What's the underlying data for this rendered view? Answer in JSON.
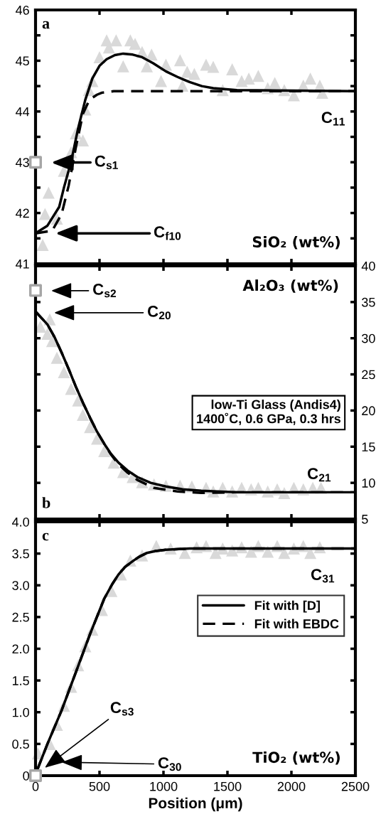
{
  "chart_data": [
    {
      "type": "scatter",
      "title": "SiO₂ (wt%)",
      "xlim": [
        0,
        2500
      ],
      "xticks": [
        0,
        500,
        1000,
        1500,
        2000,
        2500
      ],
      "ylim": [
        41,
        46
      ],
      "yticks": [
        41,
        {
          "value": 41.5,
          "label": null
        },
        42,
        {
          "value": 42.5,
          "label": null
        },
        43,
        {
          "value": 43.5,
          "label": null
        },
        44,
        {
          "value": 44.5,
          "label": null
        },
        45,
        {
          "value": 45.5,
          "label": null
        },
        46
      ],
      "tick_labels": "y",
      "grid": false,
      "legend": false,
      "annotations": [
        "a",
        "C$_{s1}$",
        "C$_{f10}$",
        "C$_{11}$"
      ],
      "series": [
        {
          "marker": "triangle",
          "color": "#d9d9d9",
          "x": [
            56,
            74,
            102,
            167,
            222,
            278,
            315,
            370,
            389,
            417,
            444,
            500,
            556,
            630,
            574,
            685,
            741,
            778,
            833,
            870,
            907,
            981,
            1019,
            1130,
            1185,
            1148,
            1241,
            1333,
            1389,
            1463,
            1537,
            1611,
            1667,
            1741,
            1815,
            1870,
            1944,
            2019,
            2093,
            2148,
            2222,
            2241
          ],
          "values": [
            41.37,
            41.98,
            42.4,
            41.89,
            42.83,
            43.2,
            43.57,
            43.43,
            44.04,
            44.42,
            44.6,
            45.07,
            45.4,
            45.4,
            45.26,
            44.89,
            45.4,
            45.33,
            45.17,
            44.89,
            45.12,
            44.6,
            44.92,
            45.01,
            44.78,
            44.51,
            44.74,
            44.92,
            44.88,
            44.42,
            44.83,
            44.6,
            44.65,
            44.7,
            44.46,
            44.56,
            44.42,
            44.32,
            44.51,
            44.65,
            44.51,
            44.37
          ]
        },
        {
          "type": "line",
          "line_style": "solid",
          "color": "#000000",
          "x": [
            0,
            93,
            185,
            222,
            278,
            333,
            389,
            444,
            500,
            556,
            620,
            685,
            760,
            833,
            920,
            1019,
            1110,
            1204,
            1300,
            1389,
            1574,
            2500
          ],
          "values": [
            41.6,
            41.75,
            42.12,
            42.5,
            43.01,
            43.67,
            44.23,
            44.65,
            44.9,
            45.03,
            45.11,
            45.14,
            45.12,
            45.07,
            44.95,
            44.79,
            44.68,
            44.58,
            44.5,
            44.46,
            44.42,
            44.4
          ]
        },
        {
          "type": "line",
          "line_style": "dashed",
          "color": "#000000",
          "x": [
            0,
            130,
            204,
            259,
            315,
            370,
            410,
            444,
            480,
            519,
            611,
            2500
          ],
          "values": [
            41.6,
            41.65,
            41.98,
            42.54,
            43.29,
            43.95,
            44.17,
            44.27,
            44.33,
            44.37,
            44.4,
            44.4
          ]
        },
        {
          "type": "scatter",
          "marker": "square",
          "color": "#a6a6a6",
          "x": [
            0
          ],
          "values": [
            43
          ]
        }
      ]
    },
    {
      "type": "scatter",
      "title": "Al₂O₃ (wt%)",
      "xlim": [
        0,
        2500
      ],
      "xticks": [
        0,
        500,
        1000,
        1500,
        2000,
        2500
      ],
      "ylim": [
        5,
        40
      ],
      "yticks": [
        5,
        10,
        15,
        20,
        25,
        30,
        35,
        40
      ],
      "tick_labels": "y",
      "grid": false,
      "legend": false,
      "annotations": [
        "b",
        "C$_{s2}$",
        "C$_{20}$",
        "C$_{21}$",
        "low-Ti Glass (Andis4)\n1400˚C, 0.6 GPa, 0.3 hrs"
      ],
      "series": [
        {
          "marker": "triangle",
          "color": "#d9d9d9",
          "x": [
            37,
            111,
            93,
            130,
            167,
            222,
            278,
            333,
            370,
            426,
            481,
            537,
            611,
            685,
            759,
            833,
            926,
            1019,
            1130,
            1222,
            1333,
            1389,
            1463,
            1537,
            1611,
            1685,
            1741,
            1815,
            1889,
            1944,
            2019,
            2093,
            2167,
            2231
          ],
          "values": [
            31.6,
            32.6,
            30.6,
            29.6,
            27.3,
            25.3,
            23.0,
            21.4,
            19.4,
            17.7,
            16.1,
            14.4,
            12.8,
            11.5,
            10.8,
            10.1,
            9.8,
            9.6,
            9.6,
            9.5,
            9.3,
            8.8,
            9.3,
            8.8,
            9.3,
            9.1,
            9.3,
            8.8,
            9.1,
            8.6,
            9.3,
            9.1,
            9.3,
            9.3
          ]
        },
        {
          "type": "line",
          "line_style": "solid",
          "color": "#000000",
          "x": [
            0,
            93,
            150,
            204,
            260,
            315,
            370,
            426,
            480,
            537,
            590,
            648,
            720,
            796,
            900,
            1019,
            1150,
            1296,
            1574,
            2500
          ],
          "values": [
            33.7,
            31.9,
            30.1,
            28.0,
            25.7,
            23.3,
            21.1,
            19.0,
            17.1,
            15.4,
            14.0,
            12.8,
            11.7,
            10.8,
            10.0,
            9.5,
            9.1,
            8.9,
            8.7,
            8.7
          ]
        },
        {
          "type": "line",
          "line_style": "dashed",
          "color": "#000000",
          "x": [
            0,
            93,
            150,
            204,
            260,
            315,
            370,
            426,
            480,
            537,
            590,
            648,
            720,
            796,
            926,
            1111,
            1296,
            1574,
            2500
          ],
          "values": [
            33.7,
            31.9,
            30.1,
            28.0,
            25.7,
            23.3,
            21.1,
            19.0,
            17.1,
            15.4,
            13.9,
            12.6,
            11.4,
            10.4,
            9.3,
            8.8,
            8.6,
            8.7,
            8.7
          ]
        },
        {
          "type": "scatter",
          "marker": "square",
          "color": "#a6a6a6",
          "x": [
            0
          ],
          "values": [
            36.6
          ]
        }
      ]
    },
    {
      "type": "scatter",
      "title": "TiO₂ (wt%)",
      "xlabel": "Position (μm)",
      "xlim": [
        0,
        2500
      ],
      "xticks": [
        0,
        500,
        1000,
        1500,
        2000,
        2500
      ],
      "ylim": [
        0,
        4
      ],
      "yticks": [
        0,
        {
          "value": 0.5,
          "label": "0.5"
        },
        {
          "value": 1,
          "label": "1.0"
        },
        {
          "value": 1.5,
          "label": "1.5"
        },
        {
          "value": 2,
          "label": "2.0"
        },
        {
          "value": 2.5,
          "label": "2.5"
        },
        {
          "value": 3,
          "label": "3.0"
        },
        {
          "value": 3.5,
          "label": "3.5"
        },
        {
          "value": 4,
          "label": "4.0"
        }
      ],
      "grid": false,
      "legend": "right",
      "annotations": [
        "c",
        "C$_{s3}$",
        "C$_{30}$",
        "C$_{31}$"
      ],
      "series": [
        {
          "marker": "triangle",
          "color": "#d9d9d9",
          "x": [
            19,
            111,
            167,
            222,
            278,
            333,
            389,
            444,
            519,
            593,
            667,
            741,
            833,
            944,
            1056,
            1167,
            1259,
            1333,
            1407,
            1463,
            1537,
            1611,
            1685,
            1741,
            1815,
            1889,
            1944,
            2019,
            2093,
            2148,
            2222
          ],
          "values": [
            0.35,
            0.5,
            0.8,
            1.1,
            1.4,
            1.74,
            2.04,
            2.3,
            2.61,
            2.91,
            3.17,
            3.39,
            3.47,
            3.62,
            3.58,
            3.51,
            3.6,
            3.62,
            3.51,
            3.58,
            3.55,
            3.6,
            3.53,
            3.62,
            3.53,
            3.62,
            3.51,
            3.58,
            3.62,
            3.51,
            3.6
          ]
        },
        {
          "type": "line",
          "name": "Fit with [D]",
          "line_style": "solid",
          "color": "#000000",
          "x": [
            0,
            19,
            93,
            204,
            315,
            426,
            537,
            600,
            648,
            700,
            759,
            810,
            870,
            940,
            1019,
            1204,
            2500
          ],
          "values": [
            0.08,
            0.12,
            0.5,
            1.03,
            1.63,
            2.23,
            2.79,
            3.02,
            3.17,
            3.29,
            3.38,
            3.45,
            3.51,
            3.54,
            3.56,
            3.58,
            3.58
          ]
        },
        {
          "type": "line",
          "name": "Fit with EBDC",
          "line_style": "dashed",
          "color": "#000000",
          "x": [
            0,
            19,
            93,
            204,
            315,
            426,
            537,
            600,
            648,
            700,
            759,
            810,
            870,
            940,
            1019,
            1204,
            2500
          ],
          "values": [
            0.08,
            0.12,
            0.5,
            1.03,
            1.63,
            2.23,
            2.79,
            3.02,
            3.17,
            3.29,
            3.38,
            3.45,
            3.51,
            3.54,
            3.56,
            3.58,
            3.58
          ]
        },
        {
          "type": "scatter",
          "marker": "square",
          "color": "#a6a6a6",
          "x": [
            0
          ],
          "values": [
            0
          ]
        }
      ]
    }
  ]
}
